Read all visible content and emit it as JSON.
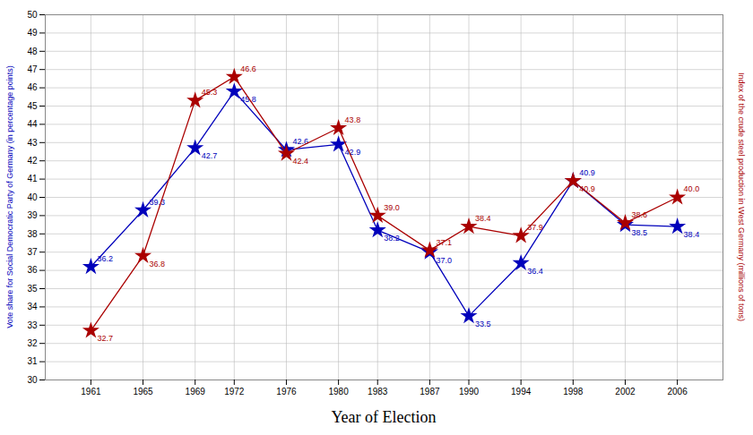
{
  "chart_data": {
    "type": "line",
    "xlabel": "Year of Election",
    "ylabel": "Vote share for Social Democratic Party of Germany (in percentage points)",
    "y2label": "Index of the crude steel production in West Germany (millions of tons)",
    "x": [
      1961,
      1965,
      1969,
      1972,
      1976,
      1980,
      1983,
      1987,
      1990,
      1994,
      1998,
      2002,
      2006
    ],
    "xlim": [
      1957.5,
      2009.5
    ],
    "xticks": [
      1961,
      1965,
      1969,
      1972,
      1976,
      1980,
      1983,
      1987,
      1990,
      1994,
      1998,
      2002,
      2006
    ],
    "ylim": [
      30,
      50
    ],
    "yticks": [
      30,
      31,
      32,
      33,
      34,
      35,
      36,
      37,
      38,
      39,
      40,
      41,
      42,
      43,
      44,
      45,
      46,
      47,
      48,
      49,
      50
    ],
    "grid": true,
    "data_labels": true,
    "marker": "star",
    "series": [
      {
        "color": "#0000bb",
        "values": [
          36.2,
          39.3,
          42.7,
          45.8,
          42.6,
          42.9,
          38.2,
          37.0,
          33.5,
          36.4,
          40.9,
          38.5,
          38.4
        ],
        "value_labels": [
          "36.2",
          "39.3",
          "42.7",
          "45.8",
          "42.6",
          "42.9",
          "38.2",
          "37.0",
          "33.5",
          "36.4",
          "40.9",
          "38.5",
          "38.4"
        ]
      },
      {
        "color": "#aa0000",
        "values": [
          32.7,
          36.8,
          45.3,
          46.6,
          42.4,
          43.8,
          39.0,
          37.1,
          38.4,
          37.9,
          40.9,
          38.6,
          40.0
        ],
        "value_labels": [
          "32.7",
          "36.8",
          "45.3",
          "46.6",
          "42.4",
          "43.8",
          "39.0",
          "37.1",
          "38.4",
          "37.9",
          "40.9",
          "38.6",
          "40.0"
        ]
      }
    ]
  }
}
